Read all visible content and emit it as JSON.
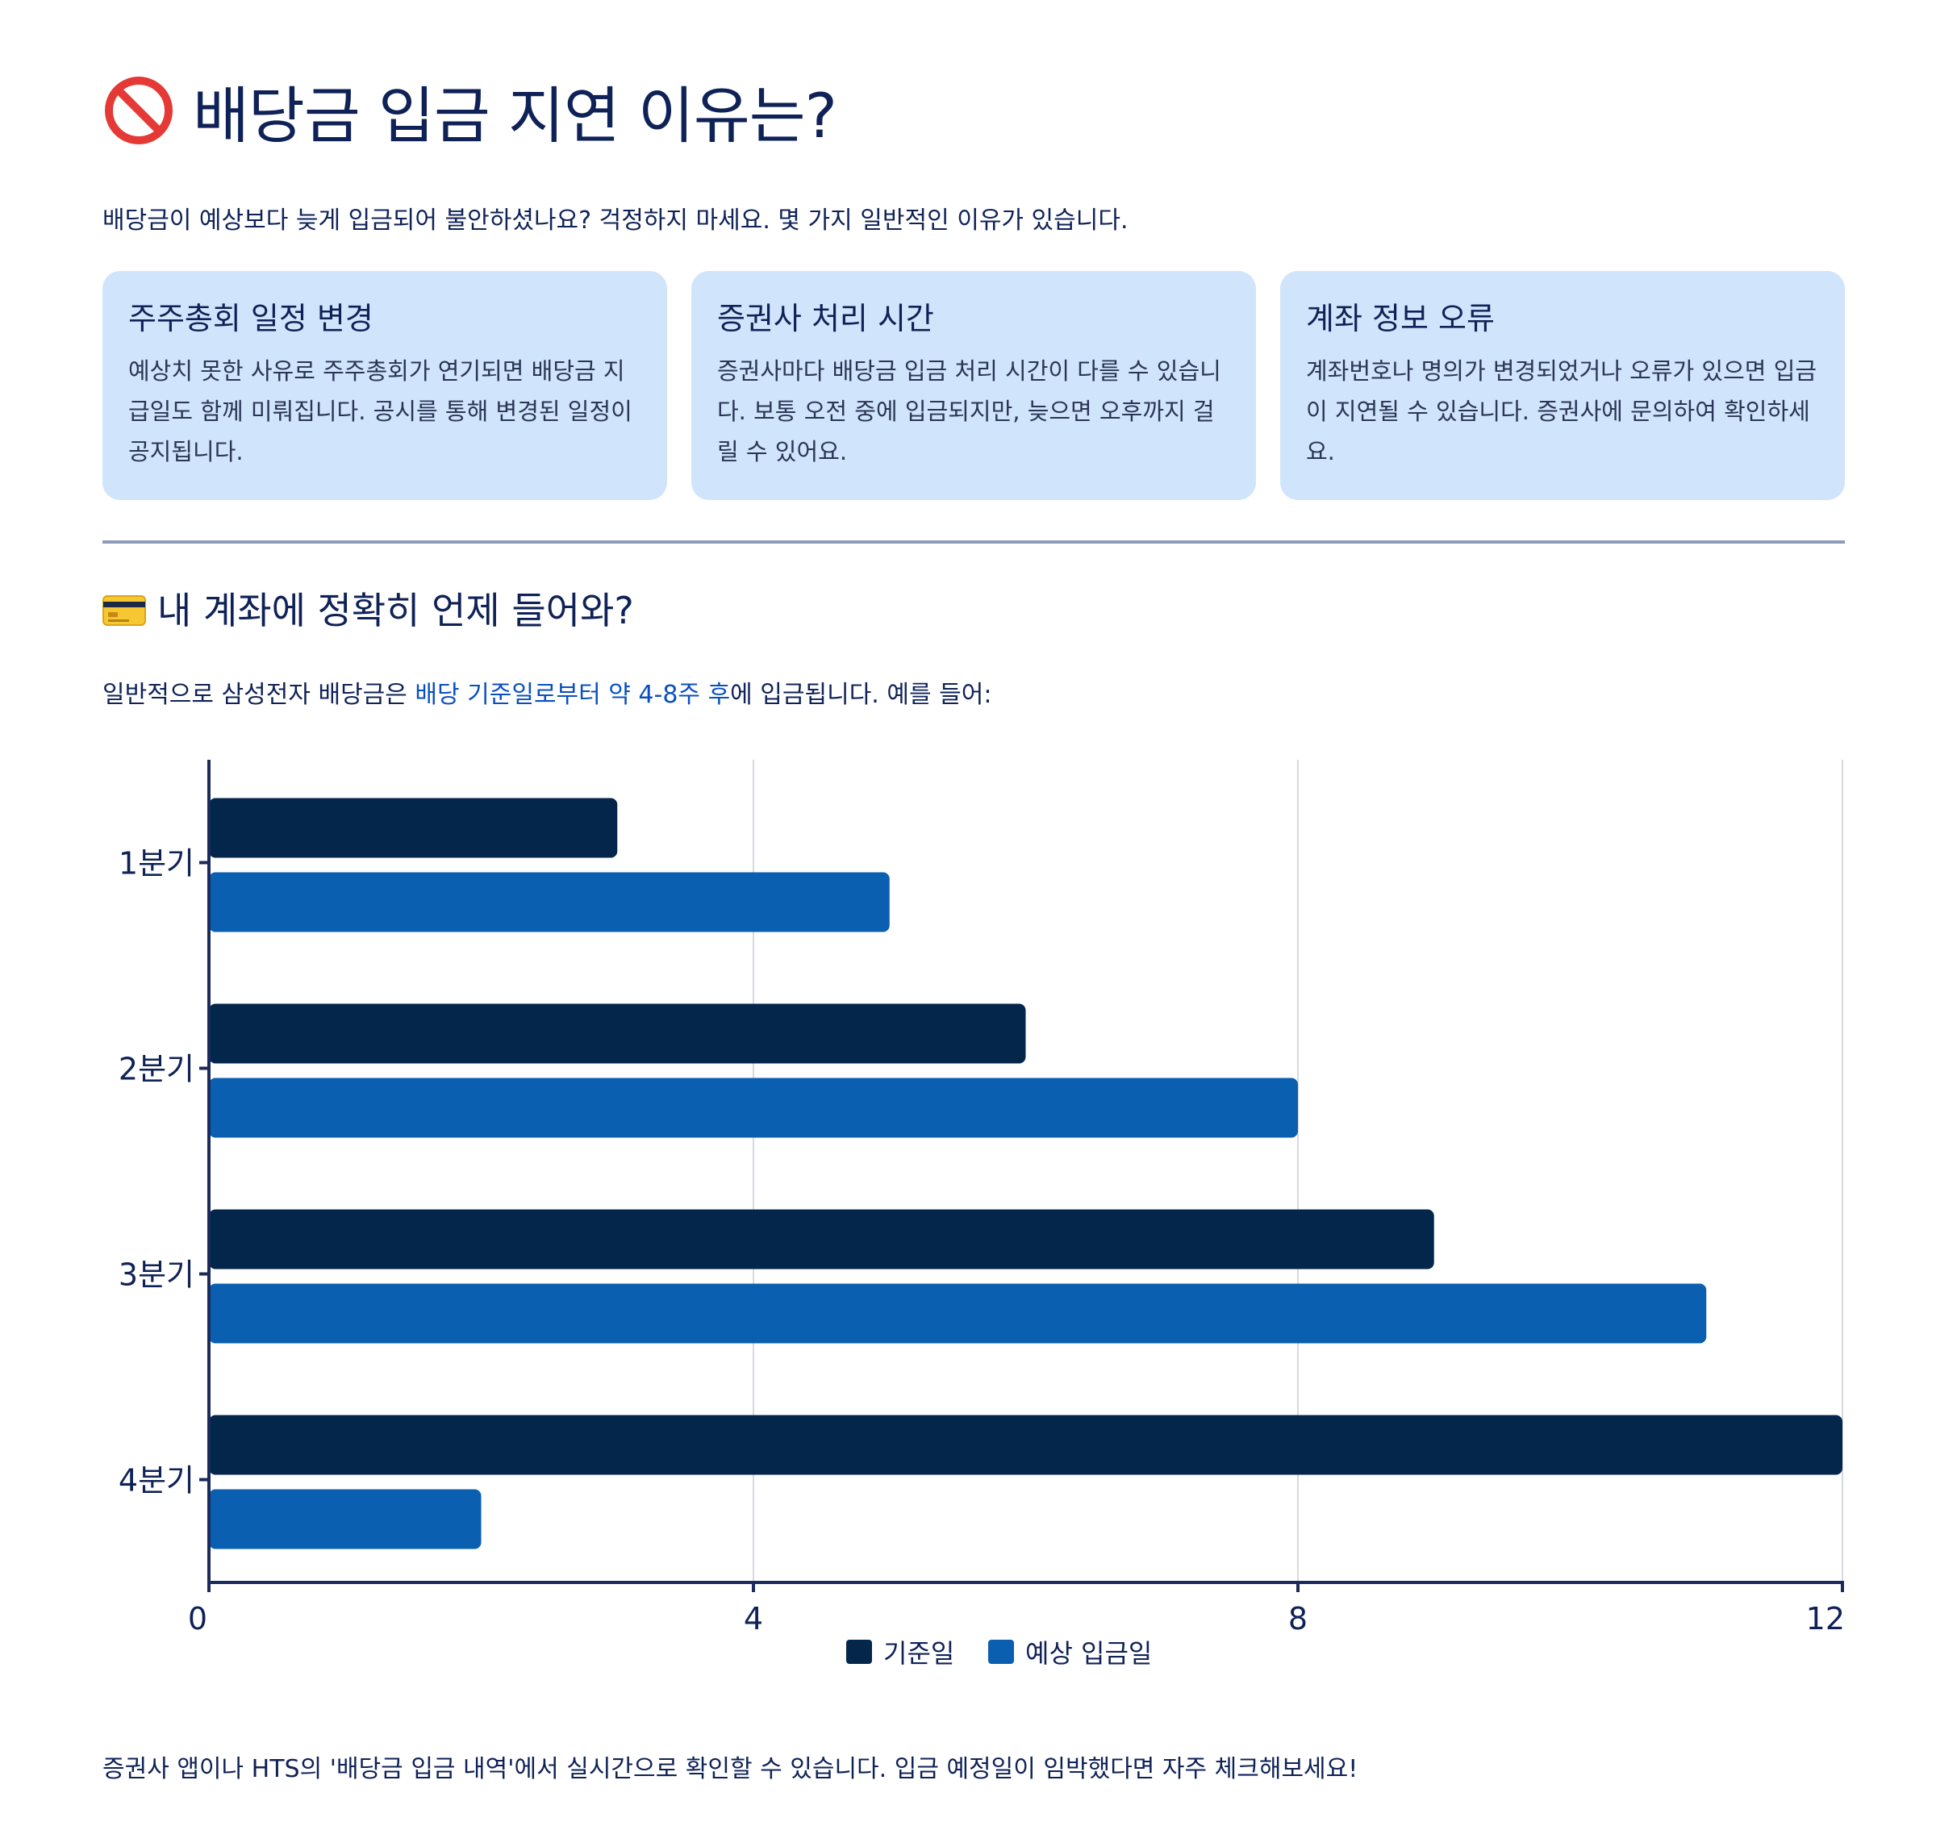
{
  "header": {
    "title": "배당금 입금 지연 이유는?",
    "icon": "prohibited-icon"
  },
  "intro": "배당금이 예상보다 늦게 입금되어 불안하셨나요? 걱정하지 마세요. 몇 가지 일반적인 이유가 있습니다.",
  "cards": [
    {
      "title": "주주총회 일정 변경",
      "body": "예상치 못한 사유로 주주총회가 연기되면 배당금 지급일도 함께 미뤄집니다. 공시를 통해 변경된 일정이 공지됩니다."
    },
    {
      "title": "증권사 처리 시간",
      "body": "증권사마다 배당금 입금 처리 시간이 다를 수 있습니다. 보통 오전 중에 입금되지만, 늦으면 오후까지 걸릴 수 있어요."
    },
    {
      "title": "계좌 정보 오류",
      "body": "계좌번호나 명의가 변경되었거나 오류가 있으면 입금이 지연될 수 있습니다. 증권사에 문의하여 확인하세요."
    }
  ],
  "section": {
    "title": "내 계좌에 정확히 언제 들어와?",
    "icon": "credit-card-icon",
    "note_before": "일반적으로 삼성전자 배당금은 ",
    "note_highlight": "배당 기준일로부터 약 4-8주 후",
    "note_after": "에 입금됩니다. 예를 들어:"
  },
  "footer": "증권사 앱이나 HTS의 '배당금 입금 내역'에서 실시간으로 확인할 수 있습니다. 입금 예정일이 임박했다면 자주 체크해보세요!",
  "colors": {
    "series1": "#04264a",
    "series2": "#0a5fb0",
    "card_bg": "#d0e4fb",
    "text": "#0f2257",
    "highlight": "#0a4fc0"
  },
  "chart_data": {
    "type": "bar",
    "orientation": "horizontal",
    "categories": [
      "1분기",
      "2분기",
      "3분기",
      "4분기"
    ],
    "series": [
      {
        "name": "기준일",
        "values": [
          3,
          6,
          9,
          12
        ]
      },
      {
        "name": "예상 입금일",
        "values": [
          5,
          8,
          11,
          2
        ]
      }
    ],
    "xlim": [
      0,
      12
    ],
    "xticks": [
      0,
      4,
      8,
      12
    ],
    "grid": true,
    "legend": "bottom-center"
  }
}
